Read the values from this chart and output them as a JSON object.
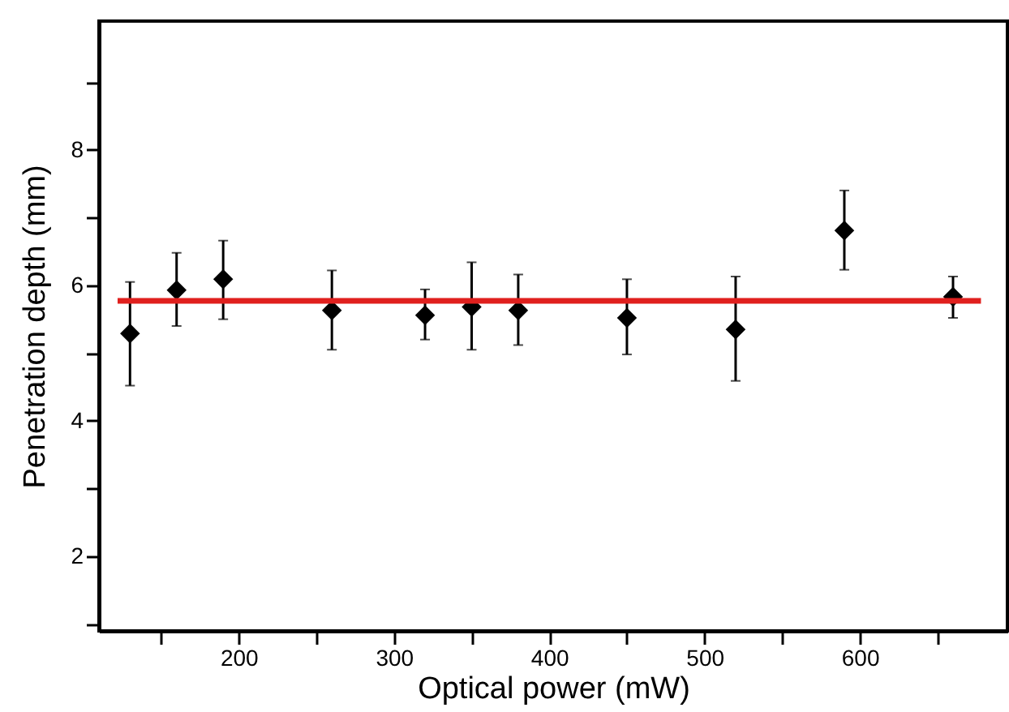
{
  "chart_data": {
    "type": "scatter",
    "xlabel": "Optical power (mW)",
    "ylabel": "Penetration depth (mm)",
    "xlim": [
      110,
      695
    ],
    "ylim": [
      0.9,
      9.9
    ],
    "xticks": [
      {
        "value": 150,
        "label": null
      },
      200,
      {
        "value": 250,
        "label": null
      },
      300,
      {
        "value": 350,
        "label": null
      },
      400,
      {
        "value": 450,
        "label": null
      },
      500,
      {
        "value": 550,
        "label": null
      },
      600,
      {
        "value": 650,
        "label": null
      }
    ],
    "yticks": [
      {
        "value": 1,
        "label": null
      },
      2,
      {
        "value": 3,
        "label": null
      },
      4,
      {
        "value": 5,
        "label": null
      },
      6,
      {
        "value": 7,
        "label": null
      },
      8,
      {
        "value": 9,
        "label": null
      }
    ],
    "series": [
      {
        "marker": "diamond",
        "color": "#000000",
        "x": [
          130,
          160,
          190,
          260,
          320,
          350,
          380,
          450,
          520,
          590,
          660
        ],
        "values": [
          5.29,
          5.93,
          6.09,
          5.63,
          5.56,
          5.68,
          5.63,
          5.52,
          5.35,
          6.81,
          5.83
        ],
        "errors": [
          [
            4.52,
            6.05
          ],
          [
            5.4,
            6.48
          ],
          [
            5.5,
            6.66
          ],
          [
            5.05,
            6.22
          ],
          [
            5.2,
            5.94
          ],
          [
            5.05,
            6.34
          ],
          [
            5.12,
            6.16
          ],
          [
            4.98,
            6.09
          ],
          [
            4.59,
            6.13
          ],
          [
            6.23,
            7.4
          ],
          [
            5.52,
            6.13
          ]
        ]
      },
      {
        "type": "line",
        "color": "#e0201e",
        "x": [
          122,
          678
        ],
        "values": [
          5.77,
          5.77
        ]
      }
    ]
  }
}
